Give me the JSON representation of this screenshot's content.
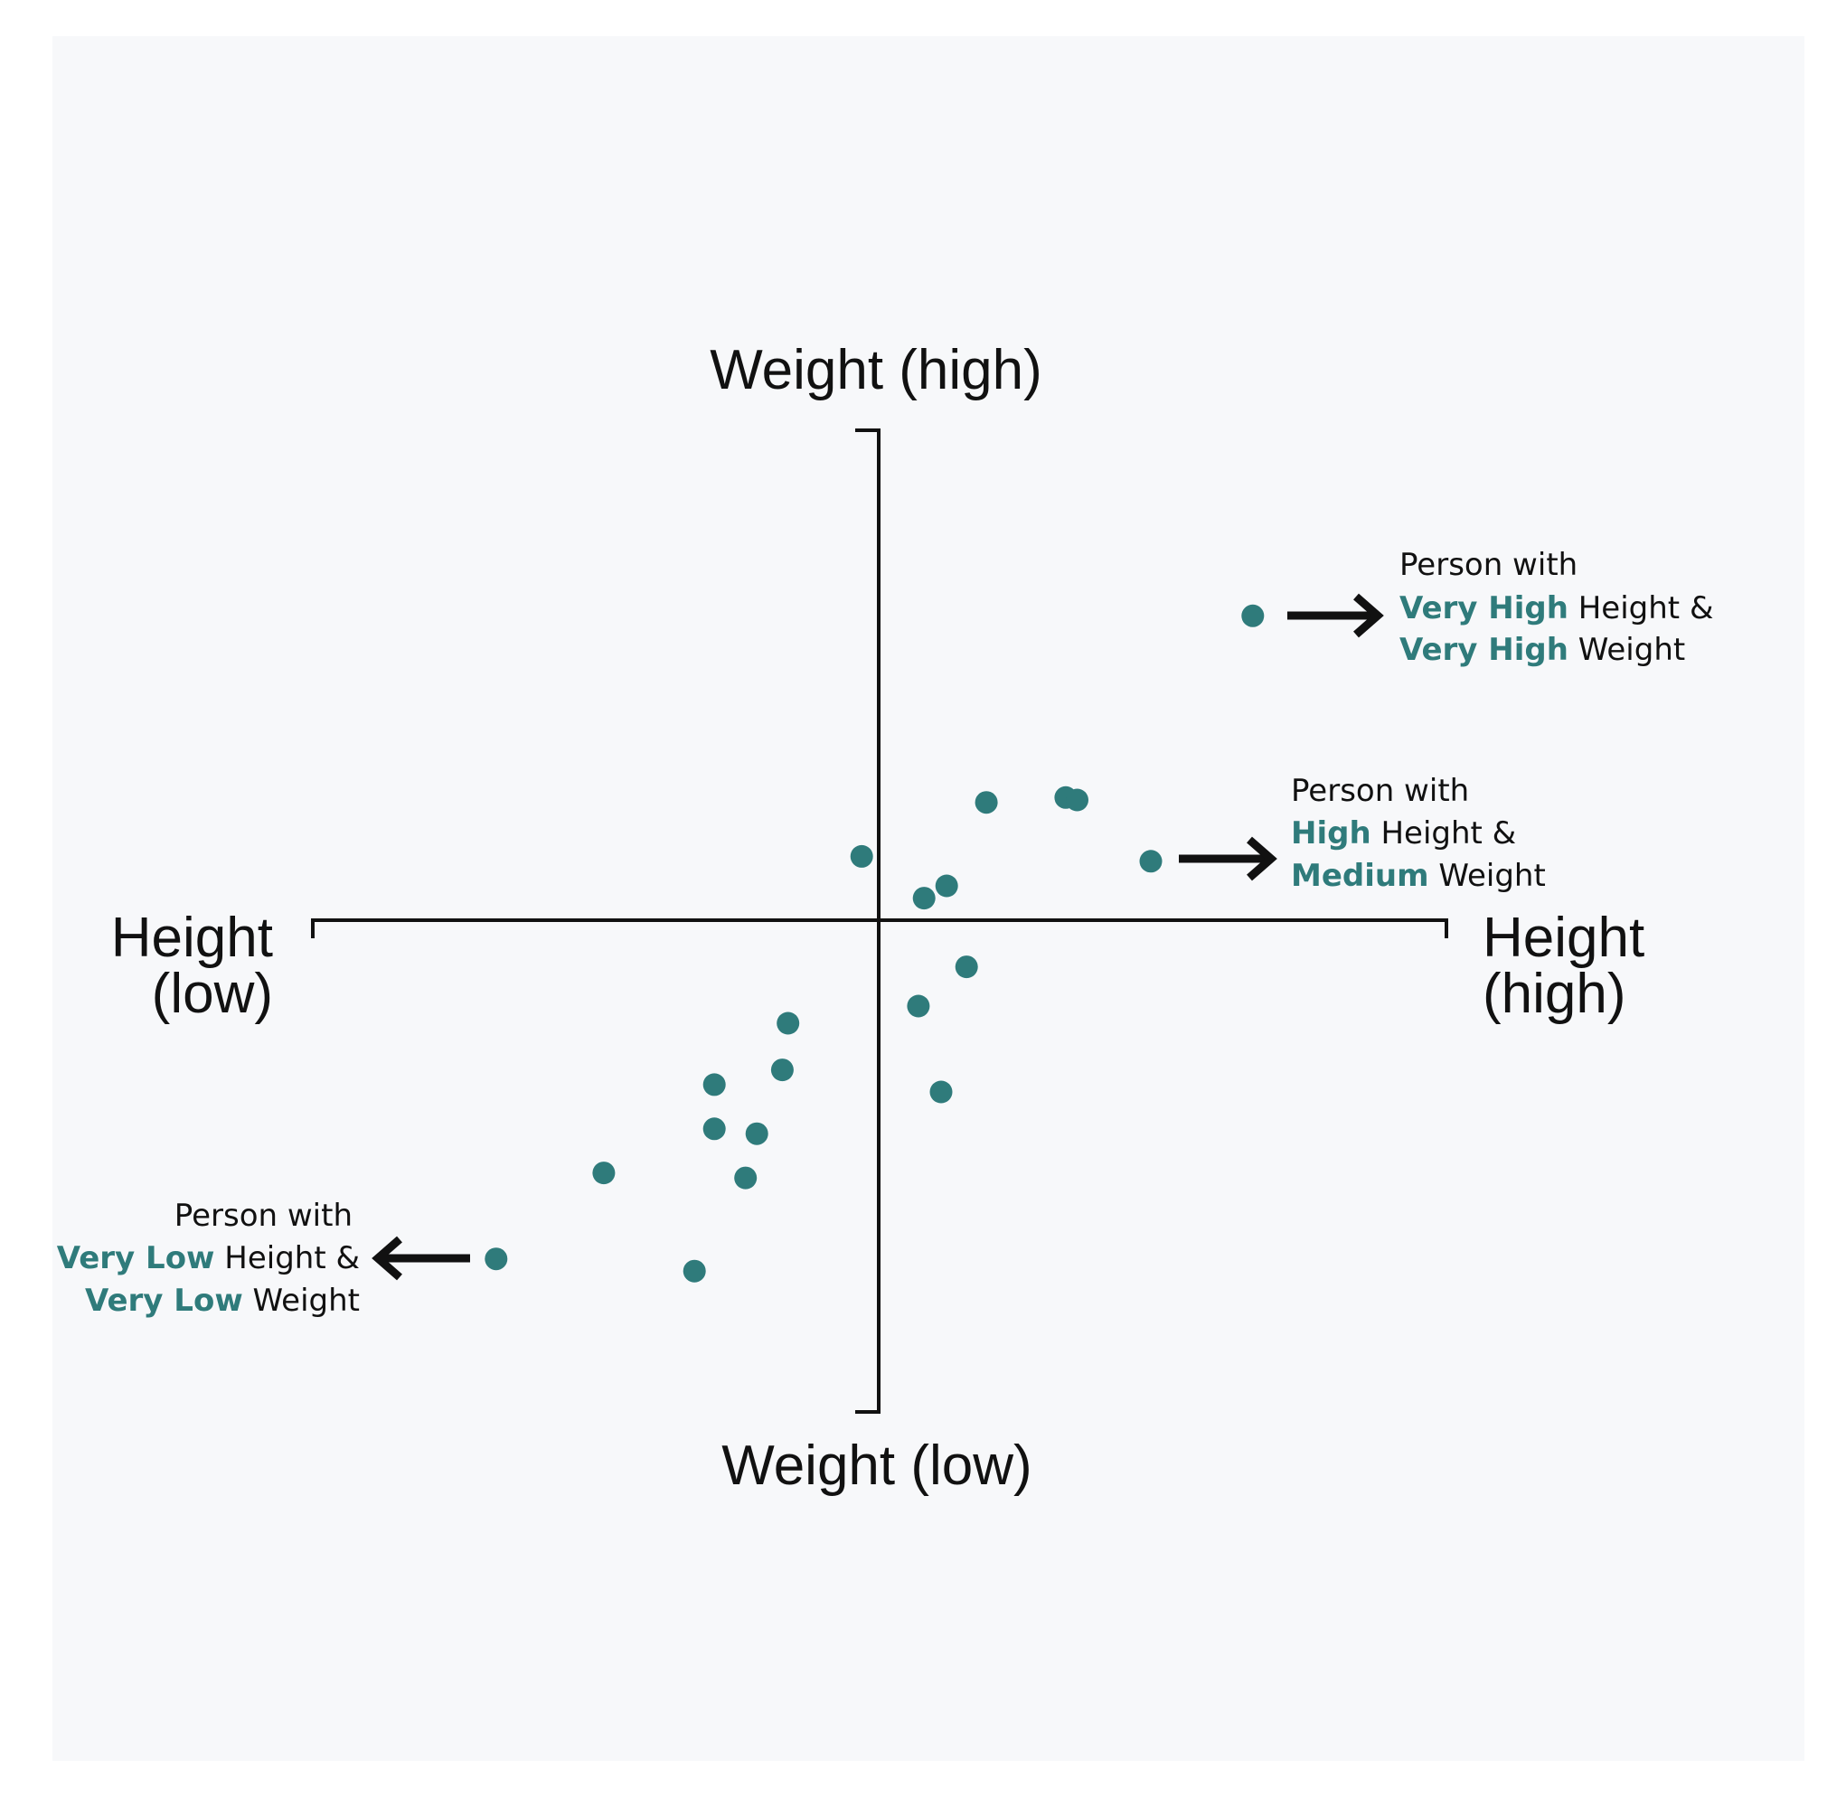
{
  "colors": {
    "background": "#ffffff",
    "panel": "#f7f8fa",
    "point": "#2f7b7b",
    "axis": "#111111",
    "highlight": "#2f7b7b"
  },
  "axes": {
    "y_high": "Weight (high)",
    "y_low": "Weight (low)",
    "x_low_line1": "Height",
    "x_low_line2": "(low)",
    "x_high_line1": "Height",
    "x_high_line2": "(high)"
  },
  "annotations": [
    {
      "id": "very-high",
      "arrow": "right",
      "line1": "Person with",
      "line2_hl": "Very High",
      "line2_rest": " Height &",
      "line3_hl": "Very High",
      "line3_rest": " Weight"
    },
    {
      "id": "high-medium",
      "arrow": "right",
      "line1": "Person with",
      "line2_hl": "High",
      "line2_rest": " Height &",
      "line3_hl": "Medium",
      "line3_rest": " Weight"
    },
    {
      "id": "very-low",
      "arrow": "left",
      "line1": "Person with",
      "line2_hl": "Very Low",
      "line2_rest": " Height &",
      "line3_hl": "Very Low",
      "line3_rest": " Weight"
    }
  ],
  "chart_data": {
    "type": "scatter",
    "xlabel": "Height",
    "ylabel": "Weight",
    "xlim": [
      -1,
      1
    ],
    "ylim": [
      -1,
      1
    ],
    "grid": false,
    "points": [
      {
        "x": 0.66,
        "y": 0.62
      },
      {
        "x": 0.19,
        "y": 0.24
      },
      {
        "x": 0.33,
        "y": 0.25
      },
      {
        "x": 0.35,
        "y": 0.245
      },
      {
        "x": -0.03,
        "y": 0.13
      },
      {
        "x": 0.48,
        "y": 0.12
      },
      {
        "x": 0.12,
        "y": 0.07
      },
      {
        "x": 0.08,
        "y": 0.045
      },
      {
        "x": 0.155,
        "y": -0.095
      },
      {
        "x": 0.07,
        "y": -0.175
      },
      {
        "x": -0.16,
        "y": -0.21
      },
      {
        "x": -0.17,
        "y": -0.305
      },
      {
        "x": -0.29,
        "y": -0.335
      },
      {
        "x": 0.11,
        "y": -0.35
      },
      {
        "x": -0.29,
        "y": -0.425
      },
      {
        "x": -0.215,
        "y": -0.435
      },
      {
        "x": -0.485,
        "y": -0.515
      },
      {
        "x": -0.235,
        "y": -0.525
      },
      {
        "x": -0.675,
        "y": -0.69
      },
      {
        "x": -0.325,
        "y": -0.715
      }
    ]
  }
}
